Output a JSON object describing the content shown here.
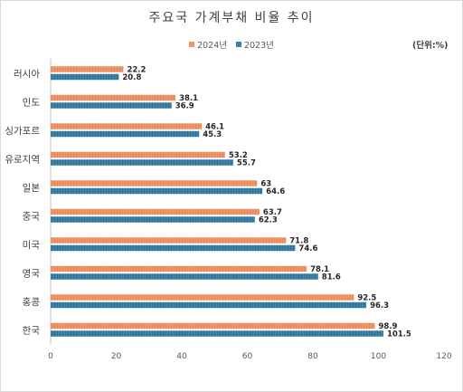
{
  "chart_data": {
    "type": "bar",
    "orientation": "horizontal",
    "title": "주요국 가계부채 비율 추이",
    "unit_label": "(단위:%)",
    "categories": [
      "러시아",
      "인도",
      "싱가포르",
      "유로지역",
      "일본",
      "중국",
      "미국",
      "영국",
      "홍콩",
      "한국"
    ],
    "series": [
      {
        "name": "2024년",
        "color": "#f0956a",
        "values": [
          22.2,
          38.1,
          46.1,
          53.2,
          63,
          63.7,
          71.8,
          78.1,
          92.5,
          98.9
        ]
      },
      {
        "name": "2023년",
        "color": "#3b84a8",
        "values": [
          20.8,
          36.9,
          45.3,
          55.7,
          64.6,
          62.3,
          74.6,
          81.6,
          96.3,
          101.5
        ]
      }
    ],
    "xlim": [
      0,
      120
    ],
    "xticks": [
      0,
      20,
      40,
      60,
      80,
      100,
      120
    ],
    "grid": false,
    "legend_position": "top"
  }
}
